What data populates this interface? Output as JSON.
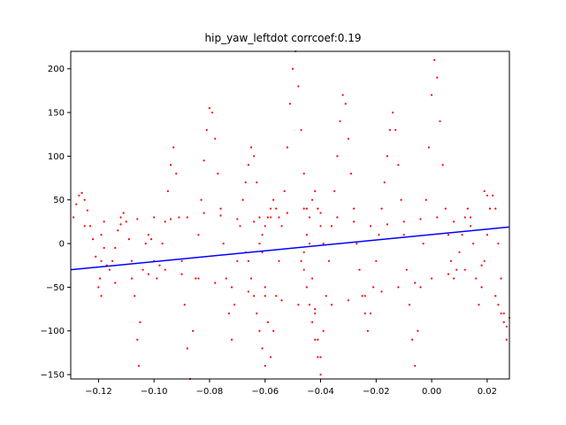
{
  "chart_data": {
    "type": "scatter",
    "title": "hip_yaw_leftdot corrcoef:0.19",
    "xlabel": "",
    "ylabel": "",
    "xlim": [
      -0.13,
      0.028
    ],
    "ylim": [
      -155,
      220
    ],
    "xticks": [
      -0.12,
      -0.1,
      -0.08,
      -0.06,
      -0.04,
      -0.02,
      0.0,
      0.02
    ],
    "xtick_labels": [
      "−0.12",
      "−0.10",
      "−0.08",
      "−0.06",
      "−0.04",
      "−0.02",
      "0.00",
      "0.02"
    ],
    "yticks": [
      -150,
      -100,
      -50,
      0,
      50,
      100,
      150,
      200
    ],
    "ytick_labels": [
      "−150",
      "−100",
      "−50",
      "0",
      "50",
      "100",
      "150",
      "200"
    ],
    "grid": false,
    "series": [
      {
        "kind": "scatter",
        "color": "#ff0000",
        "points": [
          [
            -0.129,
            30
          ],
          [
            -0.128,
            45
          ],
          [
            -0.127,
            55
          ],
          [
            -0.126,
            58
          ],
          [
            -0.125,
            50
          ],
          [
            -0.124,
            38
          ],
          [
            -0.123,
            20
          ],
          [
            -0.122,
            5
          ],
          [
            -0.121,
            -15
          ],
          [
            -0.1195,
            -40
          ],
          [
            -0.119,
            -60
          ],
          [
            -0.119,
            -20
          ],
          [
            -0.119,
            10
          ],
          [
            -0.118,
            -5
          ],
          [
            -0.117,
            -25
          ],
          [
            -0.116,
            -30
          ],
          [
            -0.115,
            -20
          ],
          [
            -0.114,
            -5
          ],
          [
            -0.113,
            15
          ],
          [
            -0.112,
            30
          ],
          [
            -0.111,
            35
          ],
          [
            -0.11,
            25
          ],
          [
            -0.109,
            5
          ],
          [
            -0.108,
            -20
          ],
          [
            -0.107,
            -60
          ],
          [
            -0.106,
            -110
          ],
          [
            -0.1055,
            -140
          ],
          [
            -0.105,
            -90
          ],
          [
            -0.104,
            -30
          ],
          [
            -0.103,
            0
          ],
          [
            -0.102,
            10
          ],
          [
            -0.101,
            5
          ],
          [
            -0.1,
            -20
          ],
          [
            -0.099,
            -40
          ],
          [
            -0.098,
            -25
          ],
          [
            -0.097,
            0
          ],
          [
            -0.096,
            25
          ],
          [
            -0.095,
            60
          ],
          [
            -0.094,
            90
          ],
          [
            -0.093,
            110
          ],
          [
            -0.092,
            80
          ],
          [
            -0.091,
            30
          ],
          [
            -0.09,
            -20
          ],
          [
            -0.089,
            -70
          ],
          [
            -0.088,
            -120
          ],
          [
            -0.087,
            -155
          ],
          [
            -0.086,
            -100
          ],
          [
            -0.085,
            -40
          ],
          [
            -0.084,
            10
          ],
          [
            -0.083,
            50
          ],
          [
            -0.082,
            95
          ],
          [
            -0.081,
            130
          ],
          [
            -0.08,
            155
          ],
          [
            -0.079,
            150
          ],
          [
            -0.078,
            120
          ],
          [
            -0.077,
            80
          ],
          [
            -0.076,
            40
          ],
          [
            -0.075,
            0
          ],
          [
            -0.074,
            -40
          ],
          [
            -0.073,
            -80
          ],
          [
            -0.072,
            -110
          ],
          [
            -0.071,
            -70
          ],
          [
            -0.07,
            -20
          ],
          [
            -0.069,
            20
          ],
          [
            -0.068,
            50
          ],
          [
            -0.067,
            70
          ],
          [
            -0.066,
            90
          ],
          [
            -0.065,
            110
          ],
          [
            -0.064,
            100
          ],
          [
            -0.063,
            70
          ],
          [
            -0.062,
            30
          ],
          [
            -0.061,
            -10
          ],
          [
            -0.06,
            -50
          ],
          [
            -0.059,
            -90
          ],
          [
            -0.058,
            -130
          ],
          [
            -0.057,
            -100
          ],
          [
            -0.056,
            -60
          ],
          [
            -0.055,
            -20
          ],
          [
            -0.054,
            20
          ],
          [
            -0.053,
            60
          ],
          [
            -0.052,
            110
          ],
          [
            -0.051,
            160
          ],
          [
            -0.05,
            200
          ],
          [
            -0.049,
            220
          ],
          [
            -0.048,
            180
          ],
          [
            -0.047,
            130
          ],
          [
            -0.046,
            80
          ],
          [
            -0.045,
            40
          ],
          [
            -0.044,
            0
          ],
          [
            -0.043,
            -40
          ],
          [
            -0.042,
            -80
          ],
          [
            -0.041,
            -110
          ],
          [
            -0.04,
            -130
          ],
          [
            -0.039,
            -100
          ],
          [
            -0.038,
            -60
          ],
          [
            -0.037,
            -20
          ],
          [
            -0.036,
            20
          ],
          [
            -0.035,
            60
          ],
          [
            -0.034,
            100
          ],
          [
            -0.033,
            140
          ],
          [
            -0.032,
            170
          ],
          [
            -0.031,
            160
          ],
          [
            -0.03,
            120
          ],
          [
            -0.029,
            80
          ],
          [
            -0.028,
            40
          ],
          [
            -0.027,
            0
          ],
          [
            -0.026,
            -30
          ],
          [
            -0.025,
            -60
          ],
          [
            -0.024,
            -80
          ],
          [
            -0.023,
            -100
          ],
          [
            -0.022,
            -80
          ],
          [
            -0.021,
            -50
          ],
          [
            -0.02,
            -20
          ],
          [
            -0.019,
            10
          ],
          [
            -0.018,
            40
          ],
          [
            -0.017,
            70
          ],
          [
            -0.016,
            100
          ],
          [
            -0.015,
            130
          ],
          [
            -0.014,
            150
          ],
          [
            -0.013,
            130
          ],
          [
            -0.012,
            90
          ],
          [
            -0.011,
            50
          ],
          [
            -0.01,
            10
          ],
          [
            -0.009,
            -30
          ],
          [
            -0.008,
            -70
          ],
          [
            -0.007,
            -110
          ],
          [
            -0.006,
            -140
          ],
          [
            -0.005,
            -100
          ],
          [
            -0.004,
            -50
          ],
          [
            -0.003,
            0
          ],
          [
            -0.002,
            50
          ],
          [
            -0.001,
            110
          ],
          [
            0.0,
            170
          ],
          [
            0.001,
            210
          ],
          [
            0.002,
            190
          ],
          [
            0.003,
            140
          ],
          [
            0.004,
            90
          ],
          [
            0.005,
            40
          ],
          [
            0.006,
            10
          ],
          [
            0.007,
            -20
          ],
          [
            0.008,
            -40
          ],
          [
            0.009,
            -30
          ],
          [
            0.01,
            -10
          ],
          [
            0.011,
            10
          ],
          [
            0.012,
            30
          ],
          [
            0.013,
            40
          ],
          [
            0.014,
            30
          ],
          [
            0.015,
            0
          ],
          [
            0.016,
            -40
          ],
          [
            0.017,
            -70
          ],
          [
            0.018,
            -50
          ],
          [
            0.019,
            -20
          ],
          [
            0.02,
            10
          ],
          [
            0.021,
            40
          ],
          [
            0.022,
            55
          ],
          [
            0.023,
            40
          ],
          [
            0.024,
            0
          ],
          [
            0.025,
            -40
          ],
          [
            0.026,
            -80
          ],
          [
            0.027,
            -110
          ],
          [
            -0.125,
            20
          ],
          [
            -0.118,
            25
          ],
          [
            -0.112,
            22
          ],
          [
            -0.106,
            28
          ],
          [
            -0.1,
            30
          ],
          [
            -0.094,
            28
          ],
          [
            -0.088,
            30
          ],
          [
            -0.082,
            35
          ],
          [
            -0.076,
            32
          ],
          [
            -0.07,
            28
          ],
          [
            -0.064,
            25
          ],
          [
            -0.058,
            30
          ],
          [
            -0.052,
            35
          ],
          [
            -0.046,
            40
          ],
          [
            -0.04,
            35
          ],
          [
            -0.034,
            30
          ],
          [
            -0.028,
            25
          ],
          [
            -0.022,
            20
          ],
          [
            -0.016,
            22
          ],
          [
            -0.01,
            25
          ],
          [
            -0.004,
            28
          ],
          [
            0.002,
            30
          ],
          [
            0.008,
            25
          ],
          [
            0.014,
            20
          ],
          [
            -0.12,
            -50
          ],
          [
            -0.114,
            -45
          ],
          [
            -0.108,
            -40
          ],
          [
            -0.102,
            -35
          ],
          [
            -0.096,
            -30
          ],
          [
            -0.09,
            -35
          ],
          [
            -0.084,
            -40
          ],
          [
            -0.078,
            -45
          ],
          [
            -0.072,
            -50
          ],
          [
            -0.066,
            -55
          ],
          [
            -0.06,
            -60
          ],
          [
            -0.054,
            -65
          ],
          [
            -0.048,
            -70
          ],
          [
            -0.042,
            -75
          ],
          [
            -0.036,
            -70
          ],
          [
            -0.03,
            -65
          ],
          [
            -0.024,
            -60
          ],
          [
            -0.018,
            -55
          ],
          [
            -0.012,
            -50
          ],
          [
            -0.006,
            -45
          ],
          [
            0.0,
            -40
          ],
          [
            0.006,
            -35
          ],
          [
            0.012,
            -30
          ],
          [
            0.018,
            -25
          ],
          [
            -0.062,
            0
          ],
          [
            -0.061,
            10
          ],
          [
            -0.06,
            20
          ],
          [
            -0.059,
            30
          ],
          [
            -0.058,
            40
          ],
          [
            -0.057,
            50
          ],
          [
            -0.056,
            40
          ],
          [
            -0.055,
            30
          ],
          [
            -0.046,
            -10
          ],
          [
            -0.045,
            10
          ],
          [
            -0.044,
            30
          ],
          [
            -0.043,
            50
          ],
          [
            -0.042,
            60
          ],
          [
            -0.041,
            40
          ],
          [
            -0.04,
            20
          ],
          [
            -0.039,
            0
          ],
          [
            -0.06,
            -140
          ],
          [
            -0.061,
            -120
          ],
          [
            -0.062,
            -100
          ],
          [
            -0.063,
            -80
          ],
          [
            -0.064,
            -60
          ],
          [
            -0.065,
            -40
          ],
          [
            -0.066,
            -20
          ],
          [
            -0.067,
            -10
          ],
          [
            -0.04,
            -150
          ],
          [
            -0.041,
            -130
          ],
          [
            -0.042,
            -110
          ],
          [
            -0.043,
            -90
          ],
          [
            -0.044,
            -70
          ],
          [
            -0.045,
            -50
          ],
          [
            -0.046,
            -30
          ],
          [
            -0.047,
            -20
          ],
          [
            0.023,
            -60
          ],
          [
            0.024,
            -70
          ],
          [
            0.025,
            -80
          ],
          [
            0.026,
            -90
          ],
          [
            0.027,
            -95
          ],
          [
            0.028,
            -85
          ],
          [
            0.019,
            60
          ],
          [
            0.02,
            55
          ]
        ]
      },
      {
        "kind": "line",
        "color": "#0000ff",
        "points": [
          [
            -0.13,
            -30
          ],
          [
            0.028,
            19
          ]
        ]
      }
    ]
  }
}
